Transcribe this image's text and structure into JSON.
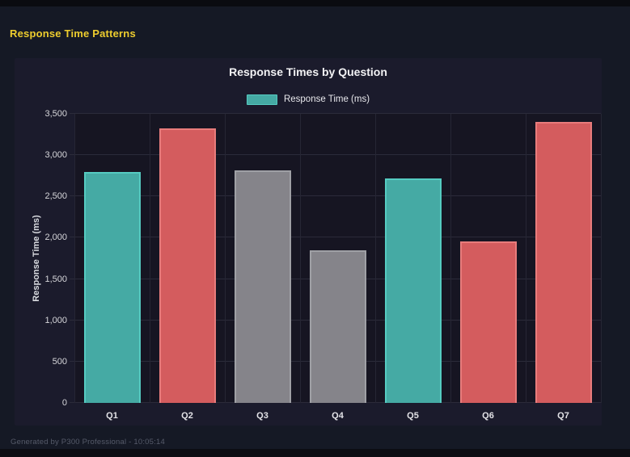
{
  "page": {
    "title": "Response Time Patterns",
    "footer": "Generated by P300 Professional - 10:05:14"
  },
  "colors": {
    "page_bg": "#151925",
    "panel_bg": "#1b1b2c",
    "plot_bg": "#161522",
    "accent_yellow": "#eecd2e",
    "teal": "#45aaa4",
    "red": "#d45c5e",
    "gray": "#85848a",
    "gridline": "#2b2b3a"
  },
  "chart_data": {
    "type": "bar",
    "title": "Response Times by Question",
    "categories": [
      "Q1",
      "Q2",
      "Q3",
      "Q4",
      "Q5",
      "Q6",
      "Q7"
    ],
    "series": [
      {
        "name": "Response Time (ms)",
        "values": [
          2800,
          3320,
          2815,
          1845,
          2720,
          1955,
          3400
        ]
      }
    ],
    "bar_colors": [
      {
        "fill": "#45aaa4",
        "border": "#55cbc1"
      },
      {
        "fill": "#d45c5e",
        "border": "#e87c7c"
      },
      {
        "fill": "#85848a",
        "border": "#9fa0a5"
      },
      {
        "fill": "#85848a",
        "border": "#9fa0a5"
      },
      {
        "fill": "#45aaa4",
        "border": "#55cbc1"
      },
      {
        "fill": "#d45c5e",
        "border": "#e87c7c"
      },
      {
        "fill": "#d45c5e",
        "border": "#e87c7c"
      }
    ],
    "xlabel": "",
    "ylabel": "Response Time (ms)",
    "ylim": [
      0,
      3500
    ],
    "ytick_step": 500,
    "yticks": [
      "0",
      "500",
      "1,000",
      "1,500",
      "2,000",
      "2,500",
      "3,000",
      "3,500"
    ],
    "grid": true,
    "legend": [
      "Response Time (ms)"
    ],
    "legend_position": "top-center"
  }
}
